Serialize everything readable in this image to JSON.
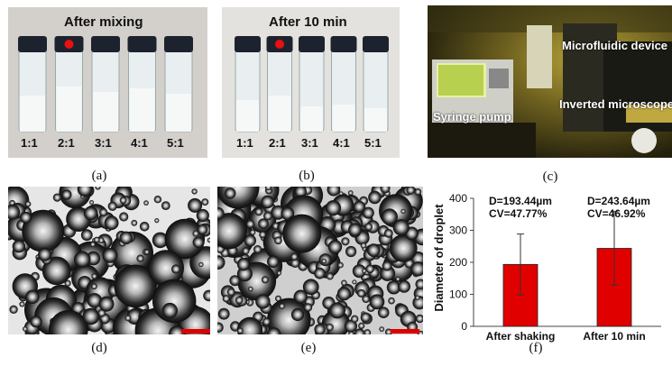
{
  "panels": {
    "a": {
      "label": "(a)",
      "title": "After mixing",
      "ratios": [
        "1:1",
        "2:1",
        "3:1",
        "4:1",
        "5:1"
      ]
    },
    "b": {
      "label": "(b)",
      "title": "After 10 min",
      "ratios": [
        "1:1",
        "2:1",
        "3:1",
        "4:1",
        "5:1"
      ]
    },
    "c": {
      "label": "(c)",
      "annotations": {
        "device": "Microfluidic device",
        "pump": "Syringe pump",
        "microscope": "Inverted microscope"
      }
    },
    "d": {
      "label": "(d)"
    },
    "e": {
      "label": "(e)"
    },
    "f": {
      "label": "(f)"
    }
  },
  "colors": {
    "bar": "#e00000",
    "marker": "#e81010",
    "scale_bar": "#e00000",
    "cap": "#1c232e"
  },
  "chart_data": {
    "type": "bar",
    "categories": [
      "After shaking",
      "After 10 min"
    ],
    "values": [
      193.44,
      243.64
    ],
    "error": [
      95,
      115
    ],
    "annotations": [
      "D=193.44µm\nCV=47.77%",
      "D=243.64µm\nCV=46.92%"
    ],
    "annotation_lines": [
      [
        "D=193.44µm",
        "CV=47.77%"
      ],
      [
        "D=243.64µm",
        "CV=46.92%"
      ]
    ],
    "ylabel": "Diameter of droplet",
    "xlabel": "",
    "title": "",
    "ylim": [
      0,
      400
    ],
    "yticks": [
      0,
      100,
      200,
      300,
      400
    ],
    "grid": false
  }
}
